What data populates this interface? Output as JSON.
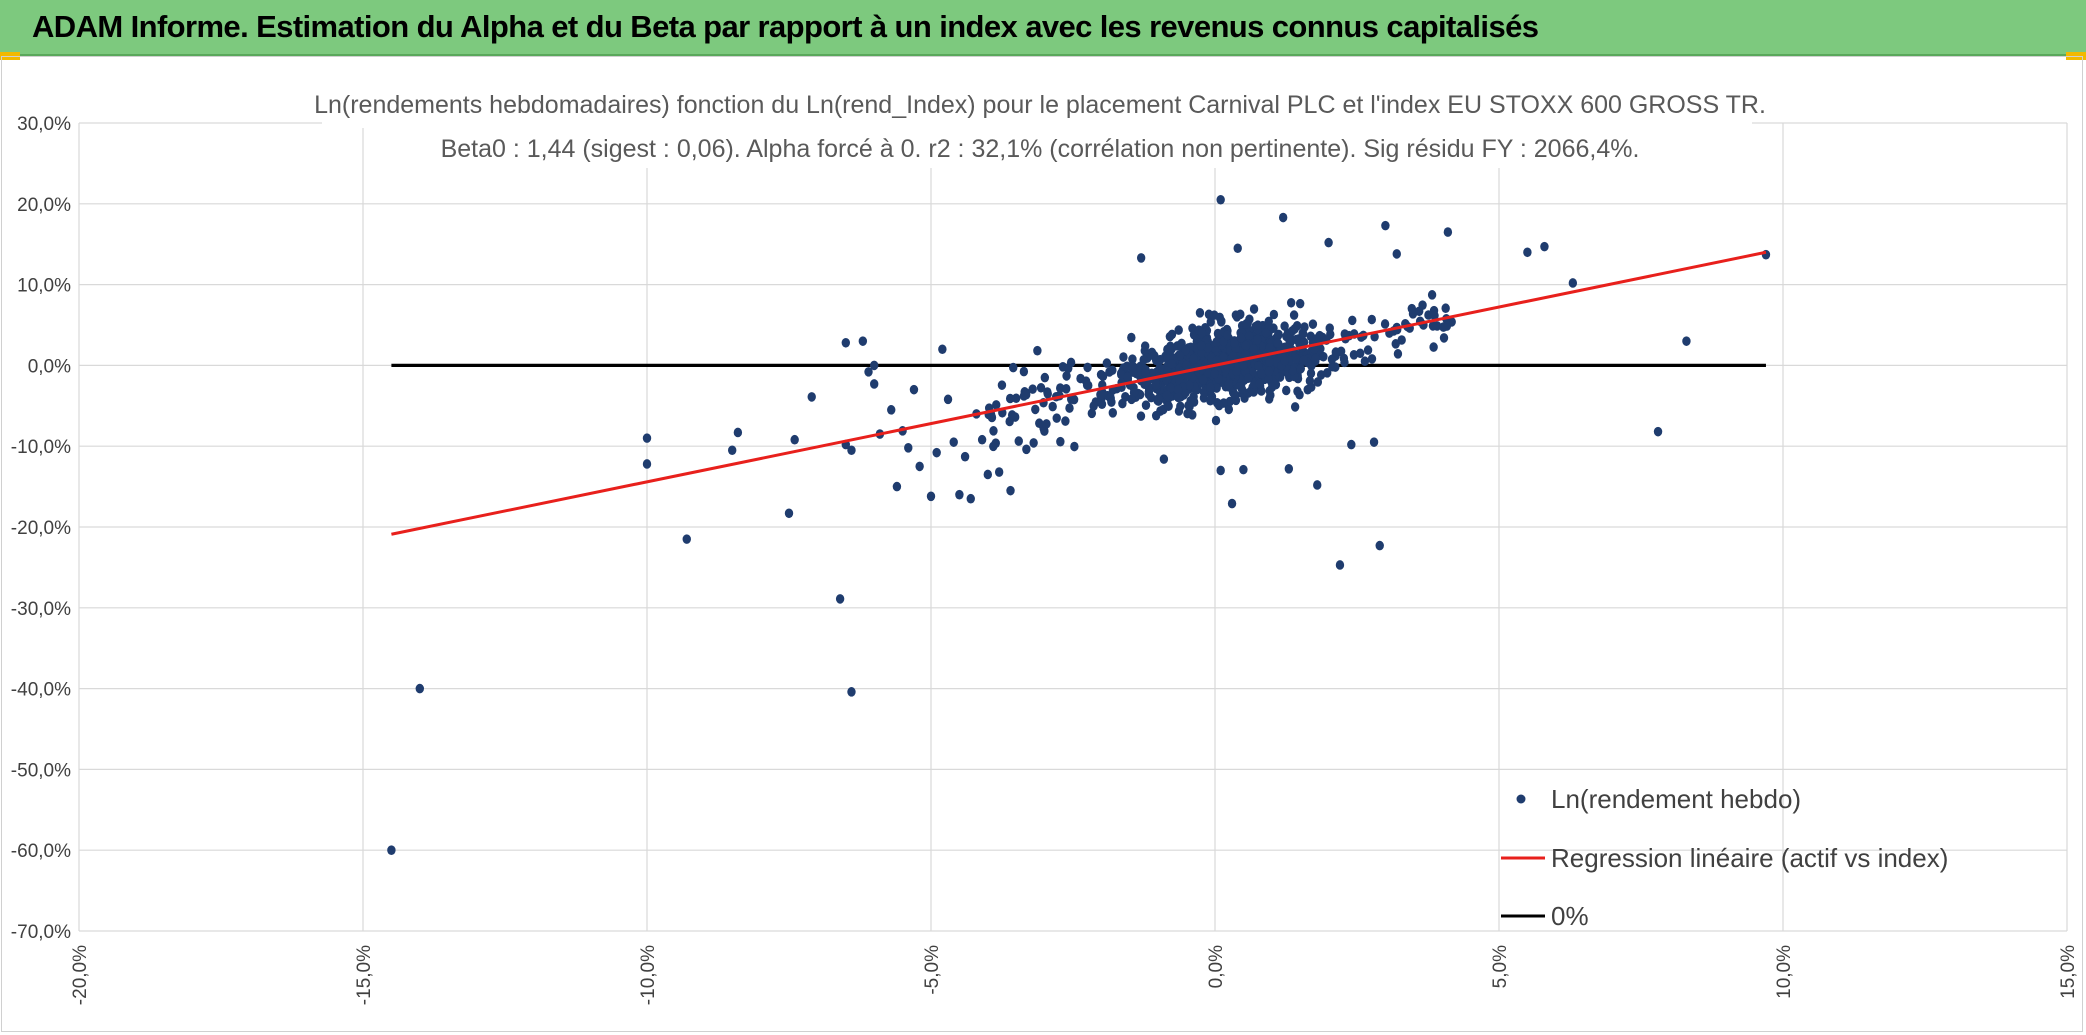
{
  "header": {
    "title": "ADAM Informe. Estimation du Alpha et du Beta par rapport à un index avec les revenus connus capitalisés"
  },
  "colors": {
    "header_bg": "#7dc97e",
    "points": "#1f3c6e",
    "regression": "#e8201c",
    "zero_line": "#000000",
    "grid": "#d9d9d9"
  },
  "chart_data": {
    "type": "scatter",
    "title_lines": [
      "Ln(rendements hebdomadaires) fonction du Ln(rend_Index) pour le placement Carnival PLC et l'index EU STOXX 600 GROSS TR.",
      "Beta0 : 1,44 (sigest : 0,06). Alpha forcé à 0. r2 : 32,1% (corrélation non pertinente). Sig résidu FY : 2066,4%."
    ],
    "xlim": [
      -0.2,
      0.15
    ],
    "ylim": [
      -0.7,
      0.3
    ],
    "x_ticks": [
      "-20,0%",
      "-15,0%",
      "-10,0%",
      "-5,0%",
      "0,0%",
      "5,0%",
      "10,0%",
      "15,0%"
    ],
    "y_ticks": [
      "30,0%",
      "20,0%",
      "10,0%",
      "0,0%",
      "-10,0%",
      "-20,0%",
      "-30,0%",
      "-40,0%",
      "-50,0%",
      "-60,0%",
      "-70,0%"
    ],
    "grid": true,
    "legend_position": "bottom-right",
    "series": [
      {
        "name": "Ln(rendement hebdo)",
        "kind": "points",
        "x": [
          -0.145,
          -0.14,
          -0.093,
          -0.1,
          -0.1,
          -0.084,
          -0.085,
          -0.075,
          -0.074,
          -0.071,
          -0.066,
          -0.065,
          -0.065,
          -0.064,
          -0.064,
          -0.062,
          -0.061,
          -0.06,
          -0.06,
          -0.059,
          -0.057,
          -0.056,
          -0.055,
          -0.054,
          -0.053,
          -0.052,
          -0.05,
          -0.049,
          -0.048,
          -0.047,
          -0.046,
          -0.045,
          -0.044,
          -0.043,
          -0.042,
          -0.041,
          -0.04,
          -0.039,
          -0.038,
          -0.036,
          0.003,
          0.005,
          0.018,
          0.022,
          0.029,
          0.03,
          0.041,
          0.055,
          0.058,
          0.063,
          0.078,
          0.083,
          0.097,
          -0.013,
          0.001,
          0.012,
          0.004,
          0.02,
          0.032,
          -0.009,
          0.001,
          0.013,
          0.024,
          0.028
        ],
        "y": [
          -0.6,
          -0.4,
          -0.215,
          -0.09,
          -0.122,
          -0.083,
          -0.105,
          -0.183,
          -0.092,
          -0.039,
          -0.289,
          0.028,
          -0.098,
          -0.404,
          -0.105,
          0.03,
          -0.008,
          -0.023,
          0.0,
          -0.085,
          -0.055,
          -0.15,
          -0.081,
          -0.102,
          -0.03,
          -0.125,
          -0.162,
          -0.108,
          0.02,
          -0.042,
          -0.095,
          -0.16,
          -0.113,
          -0.165,
          -0.06,
          -0.092,
          -0.135,
          -0.081,
          -0.132,
          -0.155,
          -0.171,
          -0.129,
          -0.148,
          -0.247,
          -0.223,
          0.173,
          0.165,
          0.14,
          0.147,
          0.102,
          -0.082,
          0.03,
          0.137,
          0.133,
          0.205,
          0.183,
          0.145,
          0.152,
          0.138,
          -0.116,
          -0.13,
          -0.128,
          -0.098,
          -0.095
        ]
      },
      {
        "name": "Regression linéaire (actif vs index)",
        "kind": "line",
        "x": [
          -0.145,
          0.097
        ],
        "y": [
          -0.209,
          0.14
        ]
      },
      {
        "name": "0%",
        "kind": "line",
        "x": [
          -0.145,
          0.097
        ],
        "y": [
          0.0,
          0.0
        ]
      }
    ]
  }
}
